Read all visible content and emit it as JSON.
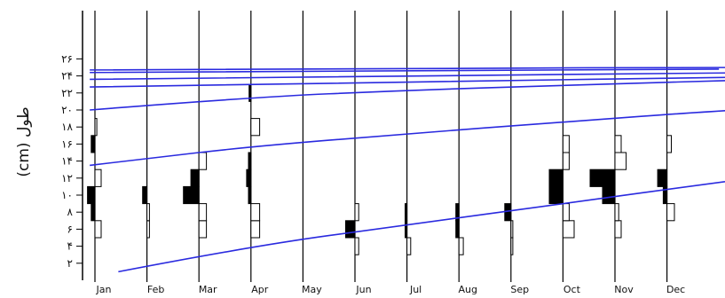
{
  "chart_data": {
    "type": "length-frequency histogram with growth curves",
    "ylabel": "طول (cm)",
    "ylim": [
      0,
      27
    ],
    "y_ticks": [
      {
        "value": 2,
        "label": "۲"
      },
      {
        "value": 4,
        "label": "۴"
      },
      {
        "value": 6,
        "label": "۶"
      },
      {
        "value": 8,
        "label": "۸"
      },
      {
        "value": 10,
        "label": "۱۰"
      },
      {
        "value": 12,
        "label": "۱۲"
      },
      {
        "value": 14,
        "label": "۱۴"
      },
      {
        "value": 16,
        "label": "۱۶"
      },
      {
        "value": 18,
        "label": "۱۸"
      },
      {
        "value": 20,
        "label": "۲۰"
      },
      {
        "value": 22,
        "label": "۲۲"
      },
      {
        "value": 24,
        "label": "۲۴"
      },
      {
        "value": 26,
        "label": "۲۶"
      }
    ],
    "months": [
      "Jan",
      "Feb",
      "Mar",
      "Apr",
      "May",
      "Jun",
      "Jul",
      "Aug",
      "Sep",
      "Oct",
      "Nov",
      "Dec"
    ],
    "bin_width": 2,
    "histograms": [
      {
        "month": "Jan",
        "bars": [
          {
            "bin": 6,
            "value": 1.0
          },
          {
            "bin": 8,
            "value": -0.6
          },
          {
            "bin": 10,
            "value": -1.2
          },
          {
            "bin": 12,
            "value": 1.0
          },
          {
            "bin": 16,
            "value": -0.6
          },
          {
            "bin": 18,
            "value": 0.3
          }
        ]
      },
      {
        "month": "Feb",
        "bars": [
          {
            "bin": 6,
            "value": 0.4
          },
          {
            "bin": 8,
            "value": 0.4
          },
          {
            "bin": 10,
            "value": -0.7
          }
        ]
      },
      {
        "month": "Mar",
        "bars": [
          {
            "bin": 6,
            "value": 1.2
          },
          {
            "bin": 8,
            "value": 1.2
          },
          {
            "bin": 10,
            "value": -2.5
          },
          {
            "bin": 12,
            "value": -1.3
          },
          {
            "bin": 14,
            "value": 1.2
          }
        ]
      },
      {
        "month": "Apr",
        "bars": [
          {
            "bin": 6,
            "value": 1.4
          },
          {
            "bin": 8,
            "value": 1.4
          },
          {
            "bin": 10,
            "value": -0.4
          },
          {
            "bin": 12,
            "value": -0.7
          },
          {
            "bin": 14,
            "value": -0.4
          },
          {
            "bin": 18,
            "value": 1.4
          },
          {
            "bin": 22,
            "value": -0.3
          }
        ]
      },
      {
        "month": "Jun",
        "bars": [
          {
            "bin": 4,
            "value": 0.6
          },
          {
            "bin": 6,
            "value": -1.5
          },
          {
            "bin": 8,
            "value": 0.6
          }
        ]
      },
      {
        "month": "Jul",
        "bars": [
          {
            "bin": 4,
            "value": 0.6
          },
          {
            "bin": 6,
            "value": -0.3
          },
          {
            "bin": 8,
            "value": -0.3
          }
        ]
      },
      {
        "month": "Aug",
        "bars": [
          {
            "bin": 4,
            "value": 0.7
          },
          {
            "bin": 6,
            "value": -0.5
          },
          {
            "bin": 8,
            "value": -0.5
          }
        ]
      },
      {
        "month": "Sep",
        "bars": [
          {
            "bin": 4,
            "value": 0.3
          },
          {
            "bin": 6,
            "value": 0.3
          },
          {
            "bin": 8,
            "value": -1.0
          }
        ]
      },
      {
        "month": "Oct",
        "bars": [
          {
            "bin": 6,
            "value": 1.8
          },
          {
            "bin": 8,
            "value": 1.0
          },
          {
            "bin": 10,
            "value": -2.2
          },
          {
            "bin": 12,
            "value": -2.2
          },
          {
            "bin": 14,
            "value": 1.0
          },
          {
            "bin": 16,
            "value": 1.0
          }
        ]
      },
      {
        "month": "Nov",
        "bars": [
          {
            "bin": 6,
            "value": 1.0
          },
          {
            "bin": 8,
            "value": 0.6
          },
          {
            "bin": 10,
            "value": -2.0
          },
          {
            "bin": 12,
            "value": -4.0
          },
          {
            "bin": 14,
            "value": 1.8
          },
          {
            "bin": 16,
            "value": 1.0
          }
        ]
      },
      {
        "month": "Dec",
        "bars": [
          {
            "bin": 8,
            "value": 1.2
          },
          {
            "bin": 10,
            "value": -0.6
          },
          {
            "bin": 12,
            "value": -1.5
          },
          {
            "bin": 16,
            "value": 0.7
          }
        ]
      }
    ],
    "growth_curves": [
      {
        "points": [
          [
            0.45,
            1.0
          ],
          [
            3.0,
            4.0
          ],
          [
            6.0,
            6.5
          ],
          [
            9.0,
            9.0
          ],
          [
            12.0,
            11.5
          ],
          [
            13.0,
            12.3
          ]
        ]
      },
      {
        "points": [
          [
            -0.1,
            13.5
          ],
          [
            1.0,
            14.3
          ],
          [
            3.0,
            15.7
          ],
          [
            6.0,
            17.2
          ],
          [
            9.0,
            18.6
          ],
          [
            12.0,
            19.9
          ],
          [
            13.0,
            20.2
          ]
        ]
      },
      {
        "points": [
          [
            -0.1,
            20.0
          ],
          [
            3.0,
            21.5
          ],
          [
            6.0,
            22.3
          ],
          [
            9.0,
            22.9
          ],
          [
            13.0,
            23.6
          ]
        ]
      },
      {
        "points": [
          [
            -0.1,
            22.7
          ],
          [
            6.0,
            23.3
          ],
          [
            13.0,
            23.9
          ]
        ]
      },
      {
        "points": [
          [
            -0.1,
            23.6
          ],
          [
            6.0,
            24.0
          ],
          [
            13.0,
            24.4
          ]
        ]
      },
      {
        "points": [
          [
            -0.1,
            24.4
          ],
          [
            6.0,
            24.6
          ],
          [
            12.0,
            24.8
          ]
        ]
      },
      {
        "points": [
          [
            -0.1,
            24.7
          ],
          [
            6.0,
            24.9
          ],
          [
            13.0,
            25.0
          ]
        ]
      }
    ],
    "colors": {
      "curve": "#2a2adf",
      "filled_bar": "#000000",
      "open_bar": "#ffffff",
      "axis": "#000000",
      "month_line": "#000000"
    }
  }
}
